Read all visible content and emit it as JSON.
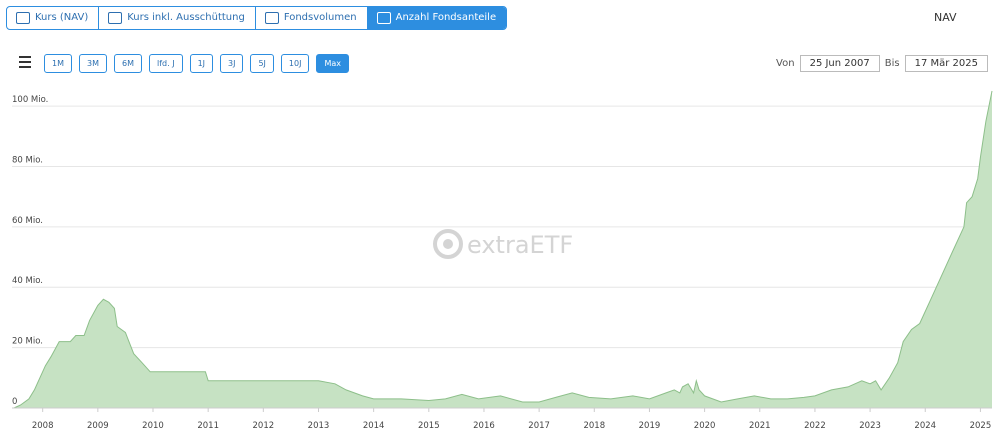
{
  "toolbar": {
    "tabs": [
      "Kurs (NAV)",
      "Kurs inkl. Ausschüttung",
      "Fondsvolumen",
      "Anzahl Fondsanteile"
    ],
    "nav": "NAV"
  },
  "range": {
    "buttons": [
      "1M",
      "3M",
      "6M",
      "lfd. J",
      "1J",
      "3J",
      "5J",
      "10J",
      "Max"
    ],
    "from_label": "Von",
    "from": "25 Jun 2007",
    "to_label": "Bis",
    "to": "17 Mär 2025"
  },
  "watermark": "extraETF",
  "chart_data": {
    "type": "area",
    "color": "#c6e2c3",
    "line_color": "#8dbf8a",
    "grid": true,
    "x": [
      2007.48,
      2007.6,
      2007.75,
      2007.85,
      2007.95,
      2008.05,
      2008.15,
      2008.3,
      2008.5,
      2008.6,
      2008.75,
      2008.85,
      2009.0,
      2009.1,
      2009.2,
      2009.3,
      2009.35,
      2009.5,
      2009.65,
      2009.8,
      2009.95,
      2010.5,
      2010.95,
      2011.0,
      2012.0,
      2013.0,
      2013.3,
      2013.5,
      2013.8,
      2014.0,
      2014.5,
      2015.0,
      2015.3,
      2015.6,
      2015.9,
      2016.3,
      2016.7,
      2017.0,
      2017.3,
      2017.6,
      2017.9,
      2018.3,
      2018.7,
      2019.0,
      2019.3,
      2019.45,
      2019.55,
      2019.6,
      2019.7,
      2019.8,
      2019.85,
      2019.9,
      2020.0,
      2020.3,
      2020.6,
      2020.9,
      2021.2,
      2021.5,
      2021.8,
      2022.0,
      2022.3,
      2022.6,
      2022.85,
      2023.0,
      2023.1,
      2023.2,
      2023.35,
      2023.5,
      2023.6,
      2023.75,
      2023.9,
      2024.1,
      2024.3,
      2024.5,
      2024.7,
      2024.75,
      2024.85,
      2024.95,
      2025.0,
      2025.1,
      2025.21
    ],
    "values": [
      0,
      1000000,
      3000000,
      6000000,
      10000000,
      14000000,
      17000000,
      22000000,
      22000000,
      24000000,
      24000000,
      29000000,
      34000000,
      36000000,
      35000000,
      33000000,
      27000000,
      25000000,
      18000000,
      15000000,
      12000000,
      12000000,
      12000000,
      9000000,
      9000000,
      9000000,
      8000000,
      6000000,
      4000000,
      3000000,
      3000000,
      2500000,
      3000000,
      4500000,
      3000000,
      4000000,
      2000000,
      2000000,
      3500000,
      5000000,
      3500000,
      3000000,
      4000000,
      3000000,
      5000000,
      6000000,
      5000000,
      7000000,
      8000000,
      5000000,
      9000000,
      6000000,
      4000000,
      2000000,
      3000000,
      4000000,
      3000000,
      3000000,
      3500000,
      4000000,
      6000000,
      7000000,
      9000000,
      8000000,
      9000000,
      6000000,
      10000000,
      15000000,
      22000000,
      26000000,
      28000000,
      36000000,
      44000000,
      52000000,
      60000000,
      68000000,
      70000000,
      76000000,
      83000000,
      95000000,
      105000000
    ],
    "xlim": [
      2007.48,
      2025.21
    ],
    "xticks": [
      2008,
      2009,
      2010,
      2011,
      2012,
      2013,
      2014,
      2015,
      2016,
      2017,
      2018,
      2019,
      2020,
      2021,
      2022,
      2023,
      2024,
      2025
    ],
    "ylim": [
      0,
      105000000
    ],
    "yticks": [
      0,
      {
        "value": 20000000,
        "label": "20 Mio."
      },
      {
        "value": 40000000,
        "label": "40 Mio."
      },
      {
        "value": 60000000,
        "label": "60 Mio."
      },
      {
        "value": 80000000,
        "label": "80 Mio."
      },
      {
        "value": 100000000,
        "label": "100 Mio."
      }
    ]
  }
}
